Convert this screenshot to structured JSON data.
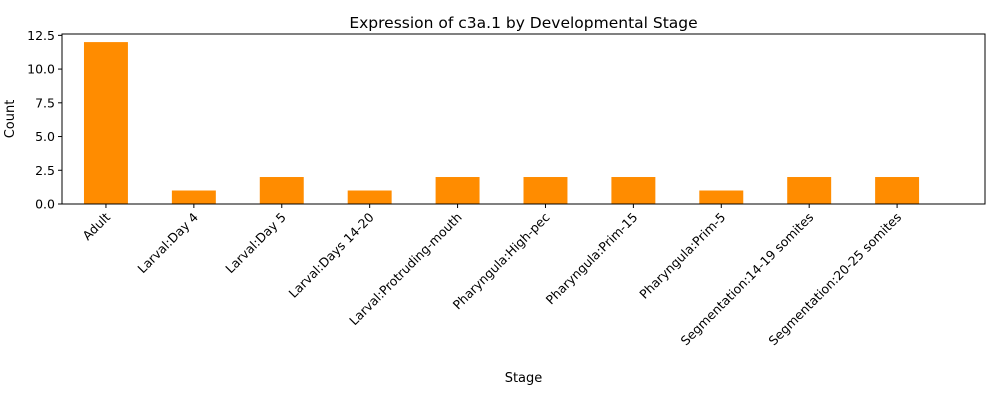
{
  "chart_data": {
    "type": "bar",
    "title": "Expression of c3a.1 by Developmental Stage",
    "xlabel": "Stage",
    "ylabel": "Count",
    "categories": [
      "Adult",
      "Larval:Day 4",
      "Larval:Day 5",
      "Larval:Days 14-20",
      "Larval:Protruding-mouth",
      "Pharyngula:High-pec",
      "Pharyngula:Prim-15",
      "Pharyngula:Prim-5",
      "Segmentation:14-19 somites",
      "Segmentation:20-25 somites"
    ],
    "values": [
      12,
      1,
      2,
      1,
      2,
      2,
      2,
      1,
      2,
      2
    ],
    "ylim": [
      0,
      12.6
    ],
    "yticks": [
      0.0,
      2.5,
      5.0,
      7.5,
      10.0,
      12.5
    ],
    "ytick_labels": [
      "0.0",
      "2.5",
      "5.0",
      "7.5",
      "10.0",
      "12.5"
    ],
    "bar_color": "#ff8c00",
    "grid": false,
    "legend": "none"
  }
}
